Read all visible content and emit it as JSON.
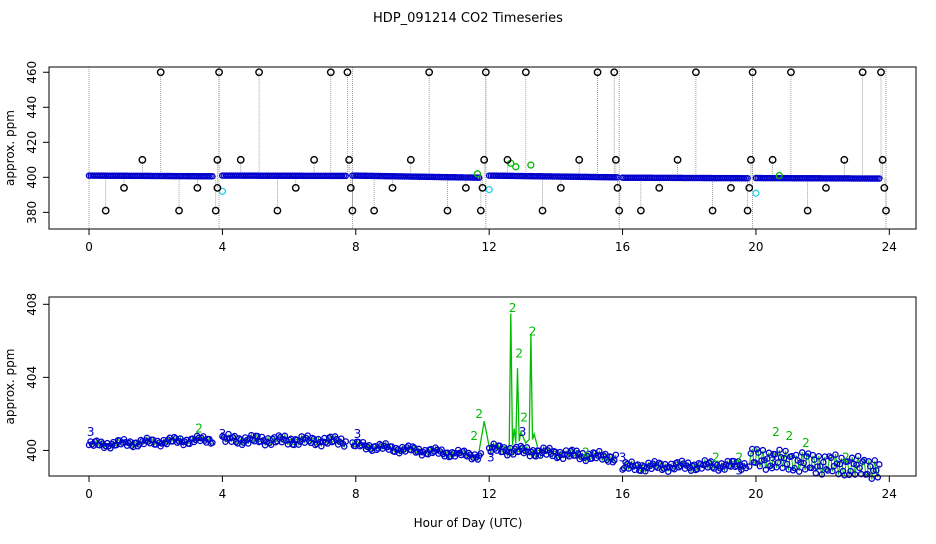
{
  "figure": {
    "title": "HDP_091214  CO2 Timeseries",
    "xlabel": "Hour of Day (UTC)"
  },
  "colors": {
    "black": "#000000",
    "blue": "#0000cc",
    "green": "#00bb00",
    "cyan": "#22ccee",
    "grey": "#888888"
  },
  "chart_data": [
    {
      "type": "scatter",
      "title": "HDP_091214  CO2 Timeseries",
      "xlabel": "",
      "ylabel": "approx. ppm",
      "xlim": [
        -1.2,
        24.8
      ],
      "ylim": [
        370.5,
        463
      ],
      "xticks": [
        0,
        4,
        8,
        12,
        16,
        20,
        24
      ],
      "yticks": [
        380,
        400,
        420,
        440,
        460
      ],
      "baseline_segments": [
        {
          "x": [
            0.0,
            3.7
          ],
          "y": [
            401,
            400.6
          ]
        },
        {
          "x": [
            4.0,
            7.7
          ],
          "y": [
            401,
            400.8
          ]
        },
        {
          "x": [
            7.9,
            11.7
          ],
          "y": [
            401,
            399.8
          ]
        },
        {
          "x": [
            12.0,
            15.85
          ],
          "y": [
            401,
            400
          ]
        },
        {
          "x": [
            16.0,
            19.75
          ],
          "y": [
            399.8,
            399.5
          ]
        },
        {
          "x": [
            20.0,
            23.7
          ],
          "y": [
            399.6,
            399.3
          ]
        }
      ],
      "black_points": [
        {
          "x": 0.5,
          "y": 381
        },
        {
          "x": 1.05,
          "y": 394
        },
        {
          "x": 1.6,
          "y": 410
        },
        {
          "x": 2.15,
          "y": 460
        },
        {
          "x": 2.7,
          "y": 381
        },
        {
          "x": 3.25,
          "y": 394
        },
        {
          "x": 3.8,
          "y": 381
        },
        {
          "x": 3.85,
          "y": 410
        },
        {
          "x": 3.9,
          "y": 460
        },
        {
          "x": 3.85,
          "y": 394
        },
        {
          "x": 4.55,
          "y": 410
        },
        {
          "x": 5.1,
          "y": 460
        },
        {
          "x": 5.65,
          "y": 381
        },
        {
          "x": 6.2,
          "y": 394
        },
        {
          "x": 6.75,
          "y": 410
        },
        {
          "x": 7.25,
          "y": 460
        },
        {
          "x": 7.75,
          "y": 460
        },
        {
          "x": 7.8,
          "y": 410
        },
        {
          "x": 7.85,
          "y": 394
        },
        {
          "x": 7.9,
          "y": 381
        },
        {
          "x": 8.55,
          "y": 381
        },
        {
          "x": 9.1,
          "y": 394
        },
        {
          "x": 9.65,
          "y": 410
        },
        {
          "x": 10.2,
          "y": 460
        },
        {
          "x": 10.75,
          "y": 381
        },
        {
          "x": 11.3,
          "y": 394
        },
        {
          "x": 11.75,
          "y": 381
        },
        {
          "x": 11.8,
          "y": 394
        },
        {
          "x": 11.85,
          "y": 410
        },
        {
          "x": 11.9,
          "y": 460
        },
        {
          "x": 12.55,
          "y": 410
        },
        {
          "x": 13.1,
          "y": 460
        },
        {
          "x": 13.6,
          "y": 381
        },
        {
          "x": 14.15,
          "y": 394
        },
        {
          "x": 14.7,
          "y": 410
        },
        {
          "x": 15.25,
          "y": 460
        },
        {
          "x": 15.75,
          "y": 460
        },
        {
          "x": 15.8,
          "y": 410
        },
        {
          "x": 15.85,
          "y": 394
        },
        {
          "x": 15.9,
          "y": 381
        },
        {
          "x": 16.55,
          "y": 381
        },
        {
          "x": 17.1,
          "y": 394
        },
        {
          "x": 17.65,
          "y": 410
        },
        {
          "x": 18.2,
          "y": 460
        },
        {
          "x": 18.7,
          "y": 381
        },
        {
          "x": 19.25,
          "y": 394
        },
        {
          "x": 19.75,
          "y": 381
        },
        {
          "x": 19.8,
          "y": 394
        },
        {
          "x": 19.85,
          "y": 410
        },
        {
          "x": 19.9,
          "y": 460
        },
        {
          "x": 20.5,
          "y": 410
        },
        {
          "x": 21.05,
          "y": 460
        },
        {
          "x": 21.55,
          "y": 381
        },
        {
          "x": 22.1,
          "y": 394
        },
        {
          "x": 22.65,
          "y": 410
        },
        {
          "x": 23.2,
          "y": 460
        },
        {
          "x": 23.75,
          "y": 460
        },
        {
          "x": 23.8,
          "y": 410
        },
        {
          "x": 23.85,
          "y": 394
        },
        {
          "x": 23.9,
          "y": 381
        }
      ],
      "green_points": [
        {
          "x": 12.65,
          "y": 408
        },
        {
          "x": 12.8,
          "y": 406
        },
        {
          "x": 13.25,
          "y": 407
        },
        {
          "x": 11.65,
          "y": 402
        },
        {
          "x": 20.7,
          "y": 401
        }
      ],
      "cyan_points": [
        {
          "x": 4.0,
          "y": 392
        },
        {
          "x": 12.0,
          "y": 393
        },
        {
          "x": 20.0,
          "y": 391
        }
      ]
    },
    {
      "type": "scatter",
      "title": "",
      "xlabel": "Hour of Day (UTC)",
      "ylabel": "approx. ppm",
      "xlim": [
        -1.2,
        24.8
      ],
      "ylim": [
        398.6,
        408.4
      ],
      "xticks": [
        0,
        4,
        8,
        12,
        16,
        20,
        24
      ],
      "yticks": [
        400,
        404,
        408
      ],
      "series": [
        {
          "name": "3",
          "color": "#0000cc",
          "label_points": [
            {
              "x": 0.05,
              "y": 401.0
            },
            {
              "x": 4.0,
              "y": 400.9
            },
            {
              "x": 8.05,
              "y": 400.9
            },
            {
              "x": 12.05,
              "y": 399.6
            },
            {
              "x": 13.0,
              "y": 401.0
            },
            {
              "x": 16.0,
              "y": 399.6
            },
            {
              "x": 19.5,
              "y": 398.9
            },
            {
              "x": 20.5,
              "y": 399.4
            }
          ]
        },
        {
          "name": "2",
          "color": "#00bb00",
          "label_points": [
            {
              "x": 3.3,
              "y": 401.2
            },
            {
              "x": 11.7,
              "y": 402.0
            },
            {
              "x": 11.55,
              "y": 400.8
            },
            {
              "x": 12.7,
              "y": 407.8
            },
            {
              "x": 12.9,
              "y": 405.3
            },
            {
              "x": 13.3,
              "y": 406.5
            },
            {
              "x": 13.05,
              "y": 401.8
            },
            {
              "x": 14.9,
              "y": 399.9
            },
            {
              "x": 18.8,
              "y": 399.6
            },
            {
              "x": 19.5,
              "y": 399.6
            },
            {
              "x": 20.6,
              "y": 401.0
            },
            {
              "x": 21.0,
              "y": 400.8
            },
            {
              "x": 22.7,
              "y": 399.6
            },
            {
              "x": 21.5,
              "y": 400.4
            }
          ]
        },
        {
          "name": "blue-circles",
          "segments": [
            {
              "x": [
                0.0,
                3.7
              ],
              "y": [
                400.3,
                400.6
              ],
              "wave": 0.15
            },
            {
              "x": [
                4.0,
                7.7
              ],
              "y": [
                400.6,
                400.5
              ],
              "wave": 0.2
            },
            {
              "x": [
                7.9,
                11.75
              ],
              "y": [
                400.3,
                399.7
              ],
              "wave": 0.15
            },
            {
              "x": [
                12.0,
                15.8
              ],
              "y": [
                400.1,
                399.6
              ],
              "wave": 0.2
            },
            {
              "x": [
                16.0,
                19.7
              ],
              "y": [
                399.1,
                399.2
              ],
              "wave": 0.2
            },
            {
              "x": [
                19.8,
                23.7
              ],
              "y": [
                399.6,
                399.0
              ],
              "wave": 0.5
            }
          ]
        },
        {
          "name": "green-spike",
          "x": [
            11.7,
            11.85,
            12.0,
            12.6,
            12.65,
            12.7,
            12.75,
            12.8,
            12.85,
            12.9,
            12.95,
            13.0,
            13.1,
            13.2,
            13.25,
            13.3,
            13.35,
            13.45
          ],
          "y": [
            400.0,
            401.6,
            400.2,
            400.2,
            407.5,
            400.3,
            401.2,
            400.4,
            404.5,
            400.5,
            401.0,
            400.8,
            400.4,
            400.6,
            406.3,
            400.6,
            400.9,
            400.2
          ]
        }
      ]
    }
  ]
}
